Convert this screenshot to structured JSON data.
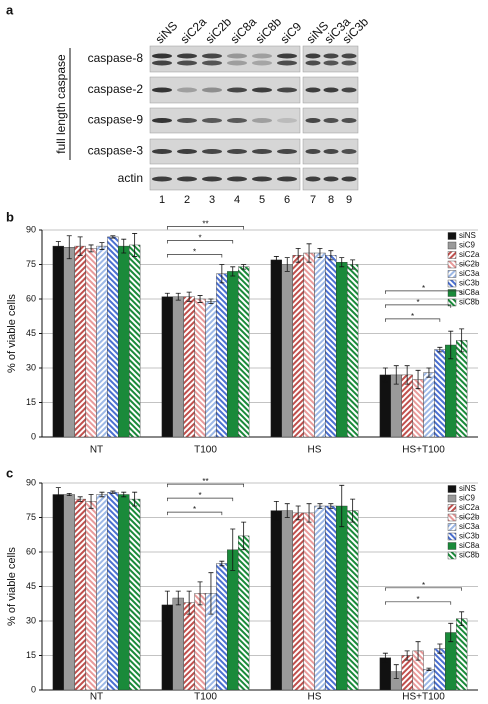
{
  "panel_labels": {
    "a": "a",
    "b": "b",
    "c": "c"
  },
  "blot": {
    "lanes": [
      "siNS",
      "siC2a",
      "siC2b",
      "siC8a",
      "siC8b",
      "siC9",
      "siNS",
      "siC3a",
      "siC3b"
    ],
    "rows": [
      "caspase-8",
      "caspase-2",
      "caspase-9",
      "caspase-3",
      "actin"
    ],
    "group_label": "full length caspase",
    "lane_numbers": [
      1,
      2,
      3,
      4,
      5,
      6,
      7,
      8,
      9
    ]
  },
  "chart_data": [
    {
      "type": "bar",
      "y_label": "% of viable cells",
      "categories": [
        "NT",
        "T100",
        "HS",
        "HS+T100"
      ],
      "ylim": [
        0,
        90
      ],
      "yticks": [
        0,
        15,
        30,
        45,
        60,
        75,
        90
      ],
      "grid": true,
      "legend": "top-right",
      "series": [
        {
          "name": "siNS",
          "color": "#111111",
          "hatch": false,
          "values": [
            83,
            61,
            77,
            27
          ],
          "errors": [
            2,
            1.5,
            1.5,
            3
          ]
        },
        {
          "name": "siC9",
          "color": "#9a9a9a",
          "hatch": false,
          "values": [
            82.5,
            61,
            75,
            27
          ],
          "errors": [
            5,
            1.5,
            3,
            4
          ]
        },
        {
          "name": "siC2a",
          "color": "#c0504d",
          "hatch": true,
          "values": [
            83,
            61,
            79,
            27
          ],
          "errors": [
            4,
            2,
            3,
            4
          ]
        },
        {
          "name": "siC2b",
          "color": "#e89a9a",
          "hatch": true,
          "values": [
            82,
            60,
            80,
            25
          ],
          "errors": [
            1.5,
            1.5,
            4,
            4
          ]
        },
        {
          "name": "siC3a",
          "color": "#9db8e6",
          "hatch": true,
          "values": [
            83,
            59,
            80,
            28
          ],
          "errors": [
            1.5,
            1,
            2,
            2
          ]
        },
        {
          "name": "siC3b",
          "color": "#4a6fd0",
          "hatch": true,
          "values": [
            87,
            71,
            79,
            38
          ],
          "errors": [
            0.5,
            4,
            2,
            1
          ]
        },
        {
          "name": "siC8a",
          "color": "#1a8a3a",
          "hatch": false,
          "values": [
            83,
            72,
            76,
            40
          ],
          "errors": [
            3,
            2,
            2,
            6
          ]
        },
        {
          "name": "siC8b",
          "color": "#1a8a3a",
          "hatch": true,
          "values": [
            83.5,
            74,
            75,
            42
          ],
          "errors": [
            5,
            1,
            2,
            5
          ]
        }
      ],
      "annotations": [
        {
          "group": "T100",
          "from": "siNS",
          "to": "siC8b",
          "label": "**"
        },
        {
          "group": "T100",
          "from": "siNS",
          "to": "siC8a",
          "label": "*"
        },
        {
          "group": "T100",
          "from": "siNS",
          "to": "siC3b",
          "label": "*"
        },
        {
          "group": "HS+T100",
          "from": "siNS",
          "to": "siC8b",
          "label": "*"
        },
        {
          "group": "HS+T100",
          "from": "siNS",
          "to": "siC8a",
          "label": "*"
        },
        {
          "group": "HS+T100",
          "from": "siNS",
          "to": "siC3b",
          "label": "*"
        }
      ]
    },
    {
      "type": "bar",
      "y_label": "% of viable cells",
      "categories": [
        "NT",
        "T100",
        "HS",
        "HS+T100"
      ],
      "ylim": [
        0,
        90
      ],
      "yticks": [
        0,
        15,
        30,
        45,
        60,
        75,
        90
      ],
      "grid": true,
      "legend": "top-right",
      "series": [
        {
          "name": "siNS",
          "color": "#111111",
          "hatch": false,
          "values": [
            85,
            37,
            78,
            14
          ],
          "errors": [
            3,
            6,
            4,
            2
          ]
        },
        {
          "name": "siC9",
          "color": "#9a9a9a",
          "hatch": false,
          "values": [
            85,
            40,
            78,
            8
          ],
          "errors": [
            0.5,
            3,
            3,
            3
          ]
        },
        {
          "name": "siC2a",
          "color": "#c0504d",
          "hatch": true,
          "values": [
            83,
            38,
            77,
            15
          ],
          "errors": [
            1,
            5,
            3,
            2
          ]
        },
        {
          "name": "siC2b",
          "color": "#e89a9a",
          "hatch": true,
          "values": [
            82,
            42,
            77,
            17
          ],
          "errors": [
            3,
            5,
            4,
            4
          ]
        },
        {
          "name": "siC3a",
          "color": "#9db8e6",
          "hatch": true,
          "values": [
            85,
            42,
            80,
            9
          ],
          "errors": [
            1,
            9,
            1,
            0.5
          ]
        },
        {
          "name": "siC3b",
          "color": "#4a6fd0",
          "hatch": true,
          "values": [
            86,
            55,
            80,
            18
          ],
          "errors": [
            0.5,
            1,
            1,
            2
          ]
        },
        {
          "name": "siC8a",
          "color": "#1a8a3a",
          "hatch": false,
          "values": [
            85,
            61,
            80,
            25
          ],
          "errors": [
            1,
            9,
            9,
            4
          ]
        },
        {
          "name": "siC8b",
          "color": "#1a8a3a",
          "hatch": true,
          "values": [
            83,
            67,
            78,
            31
          ],
          "errors": [
            3,
            6,
            5,
            3
          ]
        }
      ],
      "annotations": [
        {
          "group": "T100",
          "from": "siNS",
          "to": "siC8b",
          "label": "**"
        },
        {
          "group": "T100",
          "from": "siNS",
          "to": "siC8a",
          "label": "*"
        },
        {
          "group": "T100",
          "from": "siNS",
          "to": "siC3b",
          "label": "*"
        },
        {
          "group": "HS+T100",
          "from": "siNS",
          "to": "siC8b",
          "label": "*"
        },
        {
          "group": "HS+T100",
          "from": "siNS",
          "to": "siC8a",
          "label": "*"
        }
      ]
    }
  ]
}
